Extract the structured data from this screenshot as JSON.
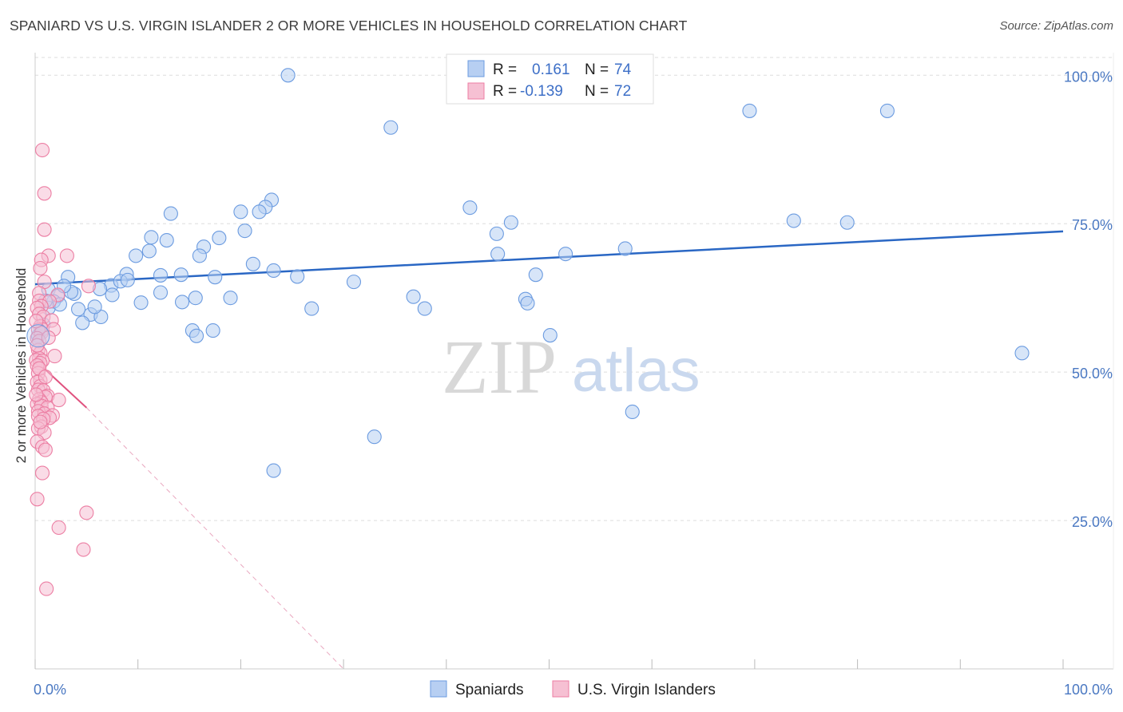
{
  "title": "SPANIARD VS U.S. VIRGIN ISLANDER 2 OR MORE VEHICLES IN HOUSEHOLD CORRELATION CHART",
  "source": "Source: ZipAtlas.com",
  "colors": {
    "blue": "#6b9be0",
    "blue_fill": "#b7cff2",
    "blue_line": "#2a67c4",
    "pink": "#ec7ea3",
    "pink_fill": "#f6c0d3",
    "pink_line": "#e0527f",
    "grid": "#dddddd",
    "axis_text": "#4a78c2"
  },
  "legend": {
    "rows": [
      {
        "r_label": "R =",
        "r_value": "0.161",
        "n_label": "N =",
        "n_value": "74"
      },
      {
        "r_label": "R =",
        "r_value": "-0.139",
        "n_label": "N =",
        "n_value": "72"
      }
    ]
  },
  "watermark": {
    "zip": "ZIP",
    "atlas": "atlas"
  },
  "chart_data": {
    "type": "scatter",
    "title": "SPANIARD VS U.S. VIRGIN ISLANDER 2 OR MORE VEHICLES IN HOUSEHOLD CORRELATION CHART",
    "xlabel": "",
    "ylabel": "2 or more Vehicles in Household",
    "xlim": [
      0,
      100
    ],
    "ylim": [
      0,
      103
    ],
    "x_tick_labels": [
      "0.0%",
      "100.0%"
    ],
    "y_ticks": [
      25,
      50,
      75,
      100
    ],
    "y_tick_labels": [
      "25.0%",
      "50.0%",
      "75.0%",
      "100.0%"
    ],
    "grid": true,
    "series": [
      {
        "name": "Spaniards",
        "color": "#6b9be0",
        "trend": {
          "x": [
            0,
            100
          ],
          "y": [
            64.8,
            73.7
          ],
          "style": "solid"
        },
        "points": [
          [
            24.6,
            100
          ],
          [
            69.5,
            94.0
          ],
          [
            82.9,
            94.0
          ],
          [
            34.6,
            91.2
          ],
          [
            23.0,
            79.0
          ],
          [
            22.4,
            77.8
          ],
          [
            20.0,
            77.0
          ],
          [
            21.8,
            77.0
          ],
          [
            13.2,
            76.7
          ],
          [
            42.3,
            77.7
          ],
          [
            46.3,
            75.2
          ],
          [
            73.8,
            75.5
          ],
          [
            79.0,
            75.2
          ],
          [
            20.4,
            73.8
          ],
          [
            11.3,
            72.7
          ],
          [
            12.8,
            72.2
          ],
          [
            17.9,
            72.6
          ],
          [
            44.9,
            73.3
          ],
          [
            16.4,
            71.1
          ],
          [
            57.4,
            70.8
          ],
          [
            11.1,
            70.4
          ],
          [
            9.8,
            69.6
          ],
          [
            16.0,
            69.6
          ],
          [
            45.0,
            69.9
          ],
          [
            51.6,
            69.9
          ],
          [
            21.2,
            68.2
          ],
          [
            23.2,
            67.1
          ],
          [
            8.9,
            66.5
          ],
          [
            12.2,
            66.3
          ],
          [
            14.2,
            66.4
          ],
          [
            17.5,
            66.0
          ],
          [
            25.5,
            66.1
          ],
          [
            3.2,
            66.0
          ],
          [
            31.0,
            65.2
          ],
          [
            48.7,
            66.4
          ],
          [
            7.4,
            64.6
          ],
          [
            8.3,
            65.3
          ],
          [
            6.3,
            64.0
          ],
          [
            1.3,
            63.9
          ],
          [
            3.8,
            63.2
          ],
          [
            12.2,
            63.4
          ],
          [
            7.5,
            63.0
          ],
          [
            15.6,
            62.5
          ],
          [
            19.0,
            62.5
          ],
          [
            36.8,
            62.7
          ],
          [
            47.7,
            62.3
          ],
          [
            2.2,
            62.8
          ],
          [
            1.8,
            61.9
          ],
          [
            10.3,
            61.7
          ],
          [
            14.3,
            61.8
          ],
          [
            47.9,
            61.6
          ],
          [
            1.3,
            60.8
          ],
          [
            4.2,
            60.6
          ],
          [
            26.9,
            60.7
          ],
          [
            37.9,
            60.7
          ],
          [
            5.4,
            59.7
          ],
          [
            6.4,
            59.3
          ],
          [
            4.6,
            58.3
          ],
          [
            15.3,
            57.0
          ],
          [
            17.3,
            57.0
          ],
          [
            15.7,
            56.1
          ],
          [
            0.3,
            56.1
          ],
          [
            50.1,
            56.2
          ],
          [
            96.0,
            53.2
          ],
          [
            58.1,
            43.3
          ],
          [
            33.0,
            39.1
          ],
          [
            23.2,
            33.4
          ],
          [
            1.0,
            62.0
          ],
          [
            2.4,
            61.4
          ],
          [
            3.5,
            63.5
          ],
          [
            9.0,
            65.5
          ],
          [
            0.8,
            58.0
          ],
          [
            2.8,
            64.5
          ],
          [
            5.8,
            61.0
          ]
        ]
      },
      {
        "name": "U.S. Virgin Islanders",
        "color": "#ec7ea3",
        "trend": {
          "x": [
            0,
            5.0
          ],
          "y": [
            52.0,
            44.0
          ],
          "style": "solid",
          "extend_to": [
            30.0,
            0.0
          ]
        },
        "points": [
          [
            0.7,
            87.4
          ],
          [
            0.9,
            80.1
          ],
          [
            0.9,
            74.0
          ],
          [
            1.3,
            69.6
          ],
          [
            3.1,
            69.6
          ],
          [
            0.6,
            68.9
          ],
          [
            0.5,
            67.5
          ],
          [
            0.9,
            65.2
          ],
          [
            5.2,
            64.5
          ],
          [
            0.4,
            63.3
          ],
          [
            2.2,
            63.0
          ],
          [
            0.4,
            62.0
          ],
          [
            1.4,
            61.9
          ],
          [
            0.6,
            61.1
          ],
          [
            0.2,
            60.8
          ],
          [
            0.4,
            59.8
          ],
          [
            0.8,
            59.3
          ],
          [
            1.6,
            58.7
          ],
          [
            0.5,
            57.7
          ],
          [
            0.7,
            57.2
          ],
          [
            1.8,
            57.2
          ],
          [
            0.3,
            57.1
          ],
          [
            0.6,
            56.6
          ],
          [
            0.2,
            55.7
          ],
          [
            0.4,
            55.2
          ],
          [
            0.3,
            53.7
          ],
          [
            0.5,
            53.2
          ],
          [
            1.9,
            52.7
          ],
          [
            0.4,
            52.3
          ],
          [
            0.1,
            52.0
          ],
          [
            0.7,
            51.9
          ],
          [
            0.5,
            51.5
          ],
          [
            0.2,
            51.1
          ],
          [
            0.3,
            49.8
          ],
          [
            0.5,
            48.6
          ],
          [
            0.2,
            48.3
          ],
          [
            0.5,
            47.6
          ],
          [
            0.3,
            47.0
          ],
          [
            0.8,
            46.9
          ],
          [
            1.2,
            46.0
          ],
          [
            1.0,
            45.8
          ],
          [
            0.4,
            45.4
          ],
          [
            2.3,
            45.3
          ],
          [
            0.6,
            44.9
          ],
          [
            0.2,
            44.6
          ],
          [
            0.6,
            44.3
          ],
          [
            1.2,
            44.0
          ],
          [
            0.3,
            43.4
          ],
          [
            0.9,
            43.0
          ],
          [
            1.7,
            42.7
          ],
          [
            0.3,
            42.6
          ],
          [
            1.4,
            42.3
          ],
          [
            0.8,
            42.1
          ],
          [
            0.6,
            40.8
          ],
          [
            0.3,
            40.5
          ],
          [
            0.9,
            39.8
          ],
          [
            0.2,
            38.3
          ],
          [
            0.7,
            37.4
          ],
          [
            1.0,
            36.9
          ],
          [
            0.7,
            33.0
          ],
          [
            0.2,
            28.6
          ],
          [
            5.0,
            26.3
          ],
          [
            2.3,
            23.8
          ],
          [
            4.7,
            20.1
          ],
          [
            1.1,
            13.5
          ],
          [
            0.1,
            58.6
          ],
          [
            0.2,
            54.5
          ],
          [
            0.4,
            50.6
          ],
          [
            1.0,
            49.2
          ],
          [
            0.1,
            46.2
          ],
          [
            0.5,
            41.6
          ],
          [
            1.3,
            55.8
          ]
        ]
      }
    ],
    "legend_position": "top-center",
    "bottom_legend": [
      "Spaniards",
      "U.S. Virgin Islanders"
    ]
  }
}
